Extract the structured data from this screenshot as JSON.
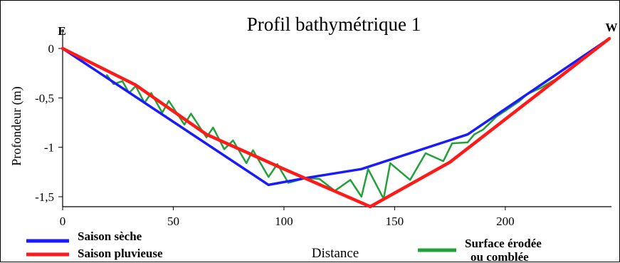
{
  "chart_data": {
    "type": "line",
    "title": "Profil bathymétrique 1",
    "xlabel": "Distance",
    "ylabel": "Profondeur (m)",
    "xlim": [
      0,
      247
    ],
    "ylim": [
      -1.6,
      0.1
    ],
    "x_ticks": [
      0,
      50,
      100,
      150,
      200
    ],
    "x_tick_labels": [
      "0",
      "50",
      "100",
      "150",
      "200"
    ],
    "y_ticks": [
      0,
      -0.5,
      -1,
      -1.5
    ],
    "y_tick_labels": [
      "0",
      "-0,5",
      "-1",
      "-1,5"
    ],
    "corner_labels": {
      "left": "E",
      "right": "W"
    },
    "grid": false,
    "legend_position": "bottom",
    "series": [
      {
        "name": "Saison sèche",
        "color": "#1a1aff",
        "points": [
          [
            0,
            0
          ],
          [
            93,
            -1.38
          ],
          [
            110,
            -1.31
          ],
          [
            135,
            -1.22
          ],
          [
            183,
            -0.87
          ],
          [
            247,
            0.1
          ]
        ]
      },
      {
        "name": "Saison pluvieuse",
        "color": "#ff1a1a",
        "points": [
          [
            0,
            0
          ],
          [
            33,
            -0.37
          ],
          [
            65,
            -0.87
          ],
          [
            100,
            -1.22
          ],
          [
            139,
            -1.6
          ],
          [
            175,
            -1.15
          ],
          [
            247,
            0.1
          ]
        ]
      },
      {
        "name": "Surface érodée\nou comblée",
        "color": "#22a03a",
        "points": [
          [
            20,
            -0.27
          ],
          [
            23,
            -0.36
          ],
          [
            27,
            -0.33
          ],
          [
            30,
            -0.45
          ],
          [
            33,
            -0.38
          ],
          [
            37,
            -0.55
          ],
          [
            40,
            -0.45
          ],
          [
            45,
            -0.65
          ],
          [
            48,
            -0.53
          ],
          [
            55,
            -0.77
          ],
          [
            58,
            -0.66
          ],
          [
            65,
            -0.9
          ],
          [
            68,
            -0.8
          ],
          [
            73,
            -1.02
          ],
          [
            77,
            -0.93
          ],
          [
            83,
            -1.16
          ],
          [
            86,
            -1.03
          ],
          [
            93,
            -1.3
          ],
          [
            97,
            -1.17
          ],
          [
            102,
            -1.36
          ],
          [
            110,
            -1.31
          ],
          [
            116,
            -1.32
          ],
          [
            123,
            -1.44
          ],
          [
            130,
            -1.33
          ],
          [
            135,
            -1.5
          ],
          [
            138,
            -1.22
          ],
          [
            145,
            -1.52
          ],
          [
            148,
            -1.16
          ],
          [
            157,
            -1.33
          ],
          [
            164,
            -1.06
          ],
          [
            172,
            -1.14
          ],
          [
            176,
            -0.96
          ],
          [
            183,
            -0.95
          ],
          [
            186,
            -0.87
          ],
          [
            190,
            -0.82
          ],
          [
            196,
            -0.69
          ],
          [
            200,
            -0.63
          ],
          [
            206,
            -0.54
          ],
          [
            210,
            -0.46
          ],
          [
            216,
            -0.4
          ],
          [
            222,
            -0.32
          ]
        ]
      }
    ]
  }
}
